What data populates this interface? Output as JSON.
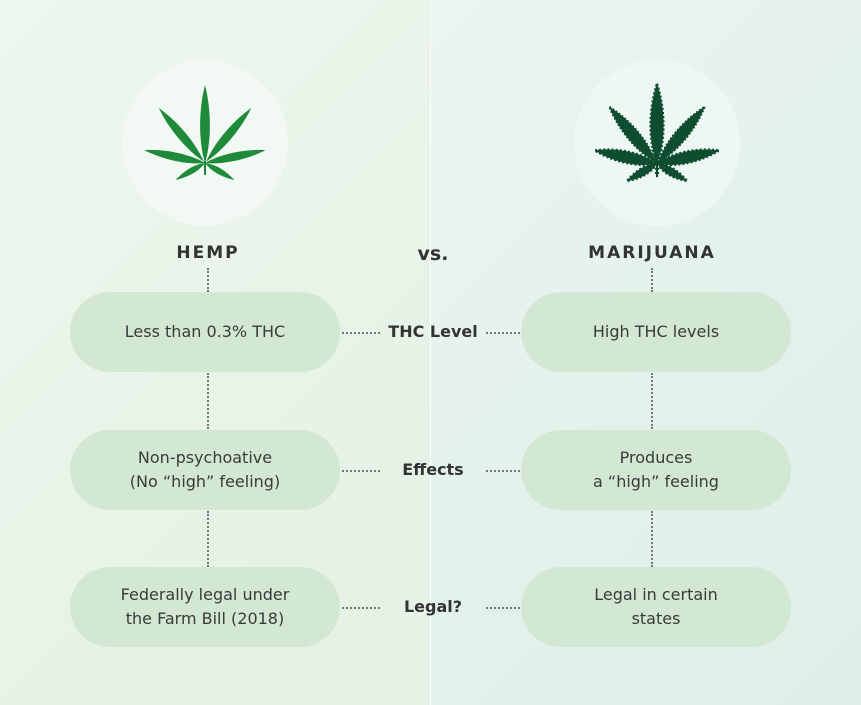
{
  "left": {
    "title": "HEMP",
    "leaf_color": "#1e8a3a",
    "items": [
      "Less than 0.3% THC",
      "Non-psychoative\n(No “high” feeling)",
      "Federally legal under\nthe Farm Bill (2018)"
    ]
  },
  "vs_label": "vs.",
  "right": {
    "title": "MARIJUANA",
    "leaf_color": "#0f4d30",
    "items": [
      "High THC levels",
      "Produces\na “high” feeling",
      "Legal in certain\nstates"
    ]
  },
  "categories": [
    "THC Level",
    "Effects",
    "Legal?"
  ]
}
